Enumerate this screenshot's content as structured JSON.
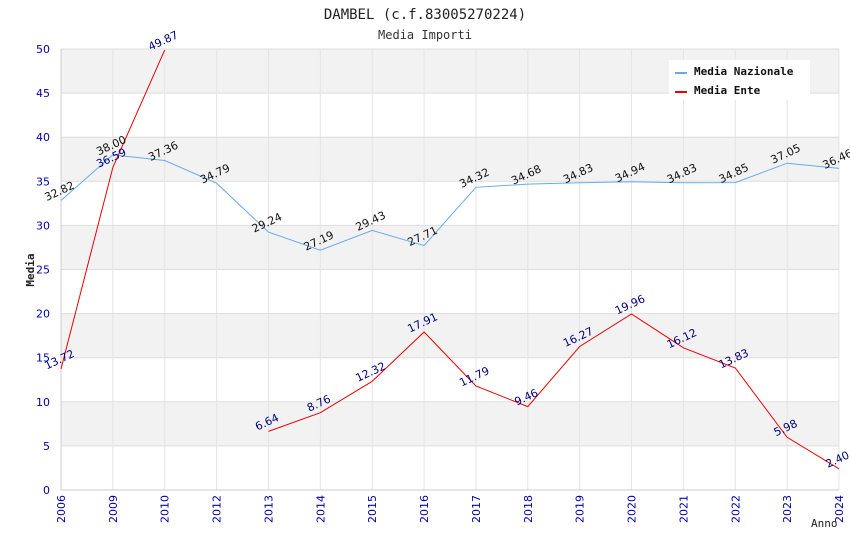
{
  "chart_data": {
    "type": "line",
    "title": "DAMBEL (c.f.83005270224)",
    "subtitle": "Media Importi",
    "xlabel": "Anno",
    "ylabel": "Media",
    "ylim": [
      0,
      50
    ],
    "yticks": [
      0,
      5,
      10,
      15,
      20,
      25,
      30,
      35,
      40,
      45,
      50
    ],
    "categories": [
      "2006",
      "2009",
      "2010",
      "2012",
      "2013",
      "2014",
      "2015",
      "2016",
      "2017",
      "2018",
      "2019",
      "2020",
      "2021",
      "2022",
      "2023",
      "2024"
    ],
    "legend_position": "top-right",
    "series": [
      {
        "name": "Media Nazionale",
        "color": "#66aaee",
        "values": [
          32.82,
          38.0,
          37.36,
          34.79,
          29.24,
          27.19,
          29.43,
          27.71,
          34.32,
          34.68,
          34.83,
          34.94,
          34.83,
          34.85,
          37.05,
          36.46
        ],
        "labels": [
          "32.82",
          "38.00",
          "37.36",
          "34.79",
          "29.24",
          "27.19",
          "29.43",
          "27.71",
          "34.32",
          "34.68",
          "34.83",
          "34.94",
          "34.83",
          "34.85",
          "37.05",
          "36.46"
        ]
      },
      {
        "name": "Media Ente",
        "color": "#ee0000",
        "values": [
          13.72,
          36.59,
          49.87,
          null,
          6.64,
          8.76,
          12.32,
          17.91,
          11.79,
          9.46,
          16.27,
          19.96,
          16.12,
          13.83,
          5.98,
          2.4
        ],
        "labels": [
          "13.72",
          "36.59",
          "49.87",
          null,
          "6.64",
          "8.76",
          "12.32",
          "17.91",
          "11.79",
          "9.46",
          "16.27",
          "19.96",
          "16.12",
          "13.83",
          "5.98",
          "2.40"
        ]
      }
    ]
  }
}
